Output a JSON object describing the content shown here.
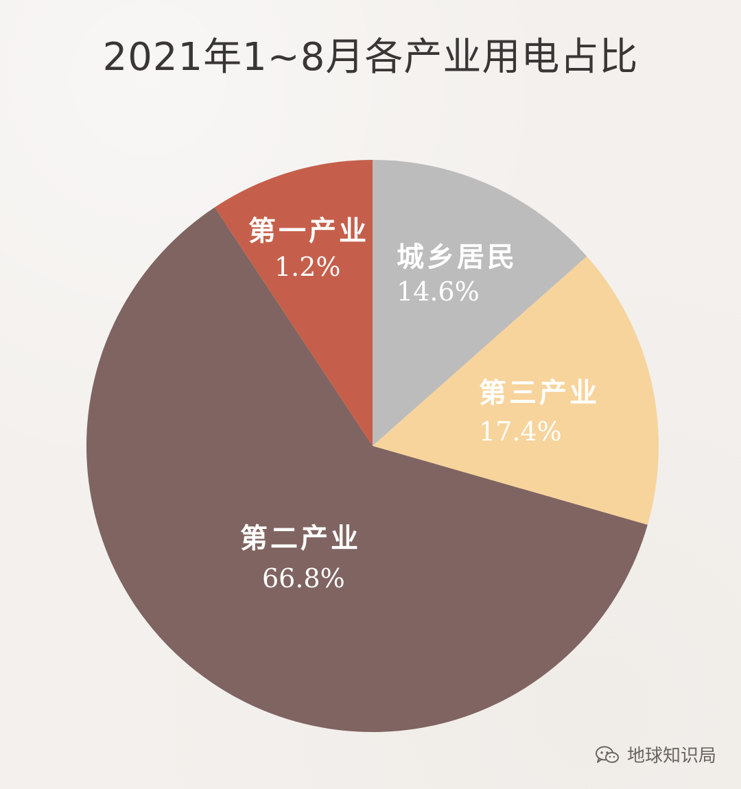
{
  "chart_data": {
    "type": "pie",
    "title": "2021年1~8月各产业用电占比",
    "unit": "%",
    "slices": [
      {
        "label": "城乡居民",
        "value": 14.6,
        "value_text": "14.6%",
        "color": "#bdbcbc"
      },
      {
        "label": "第三产业",
        "value": 17.4,
        "value_text": "17.4%",
        "color": "#f7d49c"
      },
      {
        "label": "第二产业",
        "value": 66.8,
        "value_text": "66.8%",
        "color": "#7f6462"
      },
      {
        "label": "第一产业",
        "value": 1.2,
        "value_text": "1.2%",
        "color": "#c55f4b"
      }
    ]
  },
  "watermark": {
    "icon": "wechat-icon",
    "text": "地球知识局"
  }
}
